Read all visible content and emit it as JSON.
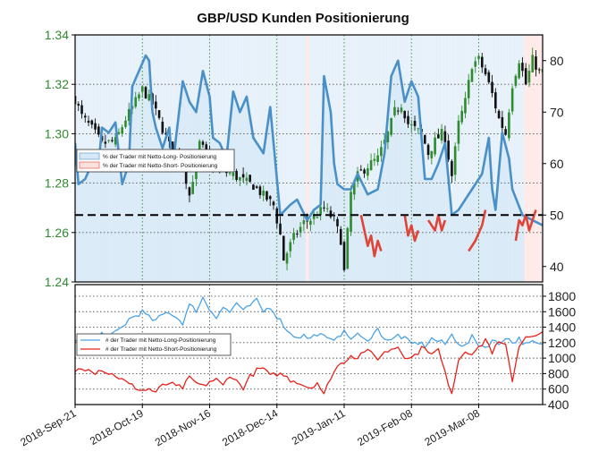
{
  "colors": {
    "price_up": "#2e8b2e",
    "price_down": "#111111",
    "long_line": "#4a90c8",
    "short_line": "#e04438",
    "long_fill": "#d7e8f6",
    "short_fill": "#fde1df",
    "count_long": "#4aa3e8",
    "count_short": "#e8201a",
    "grid": "#2f8a2f",
    "left_tick": "#2f8a2f"
  },
  "chart_data": [
    {
      "type": "candlestick+line",
      "title": "GBP/USD Kunden Positionierung",
      "left_axis": {
        "ticks": [
          "1.24",
          "1.26",
          "1.28",
          "1.30",
          "1.32",
          "1.34"
        ],
        "ylim": [
          1.24,
          1.34
        ]
      },
      "right_axis": {
        "ticks": [
          "40",
          "50",
          "60",
          "70",
          "80"
        ],
        "ylim": [
          37,
          85
        ]
      },
      "reference_line": 50,
      "legend": {
        "long": "% der Trader mit Netto-Long- Positionierung",
        "short": "% der Trader mit Netto-Short- Positionierung"
      },
      "price_anchors": [
        [
          0,
          1.314
        ],
        [
          2,
          1.307
        ],
        [
          5,
          1.302
        ],
        [
          8,
          1.296
        ],
        [
          12,
          1.297
        ],
        [
          15,
          1.306
        ],
        [
          18,
          1.313
        ],
        [
          20,
          1.318
        ],
        [
          23,
          1.312
        ],
        [
          26,
          1.302
        ],
        [
          29,
          1.292
        ],
        [
          32,
          1.288
        ],
        [
          34,
          1.275
        ],
        [
          37,
          1.296
        ],
        [
          40,
          1.29
        ],
        [
          43,
          1.285
        ],
        [
          46,
          1.284
        ],
        [
          50,
          1.281
        ],
        [
          53,
          1.279
        ],
        [
          56,
          1.275
        ],
        [
          59,
          1.271
        ],
        [
          61,
          1.259
        ],
        [
          62,
          1.249
        ],
        [
          65,
          1.258
        ],
        [
          68,
          1.264
        ],
        [
          71,
          1.266
        ],
        [
          74,
          1.27
        ],
        [
          77,
          1.265
        ],
        [
          79,
          1.257
        ],
        [
          80,
          1.244
        ],
        [
          82,
          1.276
        ],
        [
          84,
          1.283
        ],
        [
          87,
          1.287
        ],
        [
          90,
          1.29
        ],
        [
          93,
          1.3
        ],
        [
          95,
          1.309
        ],
        [
          97,
          1.312
        ],
        [
          99,
          1.304
        ],
        [
          101,
          1.302
        ],
        [
          103,
          1.3
        ],
        [
          105,
          1.292
        ],
        [
          107,
          1.297
        ],
        [
          109,
          1.3
        ],
        [
          110,
          1.298
        ],
        [
          112,
          1.283
        ],
        [
          114,
          1.304
        ],
        [
          116,
          1.313
        ],
        [
          118,
          1.328
        ],
        [
          120,
          1.33
        ],
        [
          122,
          1.324
        ],
        [
          124,
          1.316
        ],
        [
          126,
          1.306
        ],
        [
          128,
          1.3
        ],
        [
          130,
          1.32
        ],
        [
          132,
          1.33
        ],
        [
          134,
          1.32
        ],
        [
          136,
          1.33
        ],
        [
          138,
          1.325
        ]
      ],
      "long_pct_anchors": [
        [
          0,
          64
        ],
        [
          1,
          56
        ],
        [
          3,
          57
        ],
        [
          5,
          60
        ],
        [
          7,
          60
        ],
        [
          8,
          67
        ],
        [
          10,
          66
        ],
        [
          12,
          68
        ],
        [
          14,
          56
        ],
        [
          16,
          60
        ],
        [
          17,
          75
        ],
        [
          19,
          78
        ],
        [
          21,
          81
        ],
        [
          22,
          80
        ],
        [
          23,
          70
        ],
        [
          24,
          67
        ],
        [
          26,
          63
        ],
        [
          28,
          67
        ],
        [
          29,
          59
        ],
        [
          30,
          65
        ],
        [
          32,
          76
        ],
        [
          34,
          72
        ],
        [
          36,
          70
        ],
        [
          38,
          78
        ],
        [
          40,
          73
        ],
        [
          41,
          65
        ],
        [
          43,
          64
        ],
        [
          45,
          61
        ],
        [
          47,
          74
        ],
        [
          49,
          70
        ],
        [
          51,
          73
        ],
        [
          53,
          65
        ],
        [
          55,
          63
        ],
        [
          56,
          62
        ],
        [
          58,
          71
        ],
        [
          61,
          50
        ],
        [
          64,
          52
        ],
        [
          66,
          53
        ],
        [
          69,
          49
        ],
        [
          71,
          51
        ],
        [
          73,
          52
        ],
        [
          74,
          77
        ],
        [
          76,
          70
        ],
        [
          77,
          60
        ],
        [
          78,
          56
        ],
        [
          80,
          55
        ],
        [
          82,
          55
        ],
        [
          84,
          58
        ],
        [
          87,
          54
        ],
        [
          90,
          55
        ],
        [
          92,
          62
        ],
        [
          94,
          77
        ],
        [
          96,
          80
        ],
        [
          98,
          72
        ],
        [
          100,
          76
        ],
        [
          102,
          73
        ],
        [
          104,
          57
        ],
        [
          106,
          57
        ],
        [
          108,
          60
        ],
        [
          110,
          64
        ],
        [
          112,
          50
        ],
        [
          114,
          51
        ],
        [
          116,
          53
        ],
        [
          118,
          55
        ],
        [
          121,
          58
        ],
        [
          123,
          65
        ],
        [
          124,
          55
        ],
        [
          125,
          51
        ],
        [
          127,
          66
        ],
        [
          129,
          61
        ],
        [
          130,
          55
        ],
        [
          133,
          50
        ],
        [
          136,
          49
        ],
        [
          139,
          48
        ]
      ],
      "short_segments": [
        [
          [
            85,
            50
          ],
          [
            87,
            44
          ],
          [
            88,
            46
          ],
          [
            89,
            42
          ],
          [
            90,
            45
          ],
          [
            91,
            43
          ]
        ],
        [
          [
            98,
            50
          ],
          [
            99,
            46
          ],
          [
            100,
            48
          ],
          [
            101,
            45
          ],
          [
            102,
            47
          ]
        ],
        [
          [
            105,
            49
          ],
          [
            107,
            47
          ],
          [
            108,
            50
          ],
          [
            109,
            47
          ],
          [
            110,
            49
          ]
        ],
        [
          [
            117,
            43
          ],
          [
            119,
            45
          ],
          [
            121,
            48
          ],
          [
            122,
            51
          ]
        ],
        [
          [
            131,
            45
          ],
          [
            132,
            49
          ],
          [
            133,
            48
          ],
          [
            134,
            50
          ],
          [
            135,
            47
          ],
          [
            136,
            49
          ],
          [
            137,
            51
          ]
        ]
      ]
    },
    {
      "type": "line",
      "right_axis": {
        "ticks": [
          "400",
          "600",
          "800",
          "1000",
          "1200",
          "1400",
          "1600",
          "1800"
        ],
        "ylim": [
          400,
          1950
        ]
      },
      "legend": {
        "long": "# der Trader mit Netto-Long-Positionierung",
        "short": "# der Trader mit Netto-Short-Positionierung"
      },
      "categories": [
        "2018-Sep-21",
        "2018-Oct-19",
        "2018-Nov-16",
        "2018-Dec-14",
        "2019-Jan-11",
        "2019-Feb-08",
        "2019-Mar-08"
      ],
      "series": [
        {
          "name": "# der Trader mit Netto-Long-Positionierung",
          "anchors": [
            [
              0,
              1220
            ],
            [
              2,
              1160
            ],
            [
              4,
              1260
            ],
            [
              6,
              1230
            ],
            [
              8,
              1320
            ],
            [
              10,
              1250
            ],
            [
              12,
              1330
            ],
            [
              14,
              1400
            ],
            [
              16,
              1500
            ],
            [
              18,
              1550
            ],
            [
              20,
              1600
            ],
            [
              22,
              1520
            ],
            [
              24,
              1480
            ],
            [
              26,
              1560
            ],
            [
              28,
              1600
            ],
            [
              30,
              1530
            ],
            [
              32,
              1460
            ],
            [
              34,
              1680
            ],
            [
              36,
              1620
            ],
            [
              38,
              1780
            ],
            [
              40,
              1630
            ],
            [
              42,
              1540
            ],
            [
              44,
              1660
            ],
            [
              46,
              1590
            ],
            [
              48,
              1720
            ],
            [
              50,
              1600
            ],
            [
              52,
              1680
            ],
            [
              54,
              1740
            ],
            [
              56,
              1600
            ],
            [
              58,
              1670
            ],
            [
              60,
              1540
            ],
            [
              62,
              1430
            ],
            [
              64,
              1310
            ],
            [
              66,
              1280
            ],
            [
              68,
              1290
            ],
            [
              70,
              1250
            ],
            [
              72,
              1320
            ],
            [
              74,
              1270
            ],
            [
              76,
              1220
            ],
            [
              78,
              1300
            ],
            [
              80,
              1330
            ],
            [
              82,
              1260
            ],
            [
              84,
              1300
            ],
            [
              86,
              1230
            ],
            [
              88,
              1280
            ],
            [
              90,
              1370
            ],
            [
              92,
              1260
            ],
            [
              94,
              1220
            ],
            [
              96,
              1300
            ],
            [
              98,
              1250
            ],
            [
              100,
              1180
            ],
            [
              102,
              1200
            ],
            [
              104,
              1160
            ],
            [
              106,
              1250
            ],
            [
              108,
              1220
            ],
            [
              110,
              1180
            ],
            [
              112,
              1300
            ],
            [
              114,
              1200
            ],
            [
              116,
              1150
            ],
            [
              118,
              1270
            ],
            [
              120,
              1180
            ],
            [
              122,
              1140
            ],
            [
              124,
              1230
            ],
            [
              126,
              1180
            ],
            [
              128,
              1280
            ],
            [
              130,
              1200
            ],
            [
              132,
              1250
            ],
            [
              134,
              1170
            ],
            [
              136,
              1200
            ],
            [
              139,
              1160
            ]
          ]
        },
        {
          "name": "# der Trader mit Netto-Short-Positionierung",
          "anchors": [
            [
              0,
              840
            ],
            [
              2,
              860
            ],
            [
              4,
              880
            ],
            [
              6,
              820
            ],
            [
              8,
              860
            ],
            [
              10,
              800
            ],
            [
              12,
              780
            ],
            [
              14,
              720
            ],
            [
              16,
              660
            ],
            [
              18,
              620
            ],
            [
              20,
              580
            ],
            [
              22,
              600
            ],
            [
              24,
              560
            ],
            [
              26,
              640
            ],
            [
              28,
              680
            ],
            [
              30,
              630
            ],
            [
              32,
              620
            ],
            [
              34,
              740
            ],
            [
              36,
              680
            ],
            [
              38,
              630
            ],
            [
              40,
              700
            ],
            [
              42,
              720
            ],
            [
              44,
              640
            ],
            [
              46,
              790
            ],
            [
              48,
              700
            ],
            [
              50,
              620
            ],
            [
              52,
              760
            ],
            [
              54,
              840
            ],
            [
              56,
              870
            ],
            [
              58,
              760
            ],
            [
              60,
              800
            ],
            [
              62,
              780
            ],
            [
              64,
              720
            ],
            [
              66,
              700
            ],
            [
              68,
              650
            ],
            [
              70,
              620
            ],
            [
              72,
              690
            ],
            [
              74,
              520
            ],
            [
              76,
              760
            ],
            [
              78,
              890
            ],
            [
              80,
              960
            ],
            [
              82,
              1040
            ],
            [
              84,
              1010
            ],
            [
              86,
              1100
            ],
            [
              88,
              1060
            ],
            [
              90,
              1000
            ],
            [
              92,
              1070
            ],
            [
              94,
              1120
            ],
            [
              96,
              1150
            ],
            [
              98,
              1030
            ],
            [
              100,
              1000
            ],
            [
              102,
              1080
            ],
            [
              104,
              1160
            ],
            [
              106,
              1040
            ],
            [
              108,
              1110
            ],
            [
              110,
              800
            ],
            [
              112,
              560
            ],
            [
              114,
              980
            ],
            [
              116,
              1100
            ],
            [
              118,
              1070
            ],
            [
              120,
              1120
            ],
            [
              122,
              1250
            ],
            [
              124,
              1080
            ],
            [
              126,
              1200
            ],
            [
              128,
              1150
            ],
            [
              130,
              720
            ],
            [
              132,
              1150
            ],
            [
              134,
              1300
            ],
            [
              136,
              1260
            ],
            [
              139,
              1320
            ]
          ]
        }
      ]
    }
  ]
}
